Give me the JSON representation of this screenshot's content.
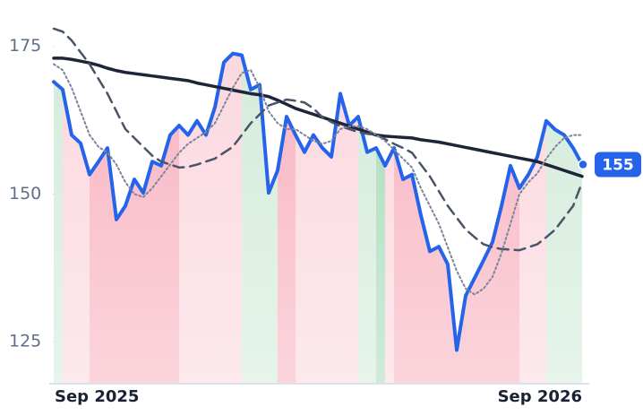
{
  "chart_data": {
    "type": "line",
    "categories": [
      "Sep 2025",
      null,
      null,
      null,
      null,
      null,
      null,
      null,
      null,
      null,
      null,
      null,
      null,
      null,
      null,
      null,
      null,
      null,
      null,
      null,
      null,
      null,
      null,
      null,
      null,
      null,
      null,
      null,
      null,
      null,
      null,
      null,
      null,
      null,
      null,
      null,
      null,
      null,
      null,
      null,
      null,
      null,
      null,
      null,
      null,
      null,
      null,
      null,
      null,
      null,
      null,
      null,
      null,
      null,
      null,
      null,
      null,
      null,
      null,
      "Sep 2026"
    ],
    "ylim": [
      117.9,
      178.3
    ],
    "yticks": [
      125,
      150,
      175
    ],
    "area_colors": [
      "#cde9d6",
      "#fbd3da",
      "#fbd3da",
      "#fbd3da",
      "#f7aab8",
      "#f7aab8",
      "#f7aab8",
      "#f7aab8",
      "#f7aab8",
      "#f7aab8",
      "#f7aab8",
      "#f7aab8",
      "#f7aab8",
      "#f7aab8",
      "#fbd3da",
      "#fbd3da",
      "#fbd3da",
      "#fbd3da",
      "#fbd3da",
      "#fbd3da",
      "#fbd3da",
      "#cde9d6",
      "#cde9d6",
      "#cde9d6",
      "#cde9d6",
      "#f7aab8",
      "#f7aab8",
      "#fbd3da",
      "#fbd3da",
      "#fbd3da",
      "#fbd3da",
      "#fbd3da",
      "#fbd3da",
      "#fbd3da",
      "#cde9d6",
      "#cde9d6",
      "#9fd6b1",
      "#fbd3da",
      "#f7aab8",
      "#f7aab8",
      "#f7aab8",
      "#f7aab8",
      "#f7aab8",
      "#f7aab8",
      "#f7aab8",
      "#f7aab8",
      "#f7aab8",
      "#f7aab8",
      "#f7aab8",
      "#f7aab8",
      "#f7aab8",
      "#f7aab8",
      "#fbd3da",
      "#fbd3da",
      "#fbd3da",
      "#cde9d6",
      "#cde9d6",
      "#cde9d6",
      "#cde9d6",
      "#cde9d6"
    ],
    "series": [
      {
        "color": "#2563eb",
        "style": "solid",
        "width": 4,
        "area": true,
        "values": [
          169,
          167.7,
          160,
          158.6,
          153.3,
          155.5,
          157.8,
          145.7,
          148,
          152.5,
          150.2,
          155.5,
          154.8,
          160,
          161.6,
          160,
          162.4,
          160,
          164.7,
          172.3,
          173.8,
          173.5,
          167.7,
          168.5,
          150.2,
          154,
          163.1,
          160,
          157.1,
          160,
          157.8,
          156.3,
          167,
          161.6,
          163.1,
          157.1,
          157.8,
          154.8,
          157.8,
          152.5,
          153.3,
          146.4,
          140.3,
          141.1,
          138.1,
          123.6,
          132.8,
          135.8,
          138.8,
          141.9,
          148,
          154.8,
          151,
          153.3,
          156.3,
          162.4,
          160.9,
          160,
          157.8,
          155
        ],
        "value_labels": [
          null,
          null,
          null,
          null,
          null,
          null,
          null,
          null,
          null,
          null,
          null,
          null,
          null,
          null,
          null,
          null,
          null,
          null,
          null,
          null,
          null,
          null,
          null,
          null,
          null,
          null,
          null,
          null,
          null,
          null,
          null,
          null,
          null,
          null,
          null,
          null,
          null,
          null,
          null,
          null,
          null,
          null,
          null,
          null,
          null,
          null,
          null,
          null,
          null,
          null,
          null,
          null,
          null,
          null,
          null,
          null,
          null,
          null,
          null,
          "155"
        ]
      },
      {
        "color": "#1e2538",
        "style": "solid",
        "width": 3.5,
        "values": [
          173,
          173,
          172.8,
          172.5,
          172.2,
          171.8,
          171.3,
          170.9,
          170.6,
          170.4,
          170.2,
          170,
          169.8,
          169.6,
          169.4,
          169.2,
          168.8,
          168.5,
          168.2,
          167.9,
          167.6,
          167.3,
          167,
          166.8,
          166.5,
          165.9,
          165.2,
          164.5,
          164,
          163.5,
          163,
          162.5,
          162,
          161.5,
          161,
          160.5,
          160,
          159.8,
          159.7,
          159.6,
          159.5,
          159.2,
          159,
          158.8,
          158.5,
          158.2,
          157.9,
          157.6,
          157.3,
          157,
          156.7,
          156.4,
          156.1,
          155.8,
          155.5,
          155,
          154.5,
          154,
          153.5,
          153
        ]
      },
      {
        "color": "#4a5468",
        "style": "dashed",
        "width": 2.5,
        "values": [
          178,
          177.5,
          176,
          174,
          172,
          169.5,
          167,
          164,
          161,
          159.5,
          158,
          156.5,
          155.5,
          155,
          154.5,
          154.6,
          155,
          155.5,
          156,
          157,
          158,
          160,
          162,
          163.5,
          165,
          165.5,
          166,
          165.8,
          165.5,
          164.5,
          163,
          162.2,
          161.5,
          161,
          160.5,
          160.2,
          160,
          159.3,
          158.5,
          157.8,
          157,
          155,
          153,
          150.5,
          148,
          146,
          144,
          142.7,
          141.5,
          141,
          140.7,
          140.6,
          140.5,
          141,
          141.5,
          142.7,
          144,
          146,
          148,
          152
        ]
      },
      {
        "color": "#7a849a",
        "style": "dotted",
        "width": 2,
        "values": [
          172,
          171,
          168,
          164,
          160,
          158,
          157,
          155,
          152,
          150,
          149.5,
          151,
          153,
          155,
          157,
          158.5,
          159.5,
          160.5,
          162,
          165,
          168,
          170.5,
          171,
          168,
          164,
          162,
          161,
          161,
          160,
          159,
          158.5,
          159,
          161,
          161.5,
          161.5,
          161,
          160,
          159,
          157.5,
          156,
          154.5,
          151,
          148,
          145,
          141,
          137,
          134,
          133,
          134,
          136,
          140,
          145,
          150,
          152,
          153.5,
          156,
          158,
          159.5,
          160,
          160
        ]
      }
    ]
  }
}
